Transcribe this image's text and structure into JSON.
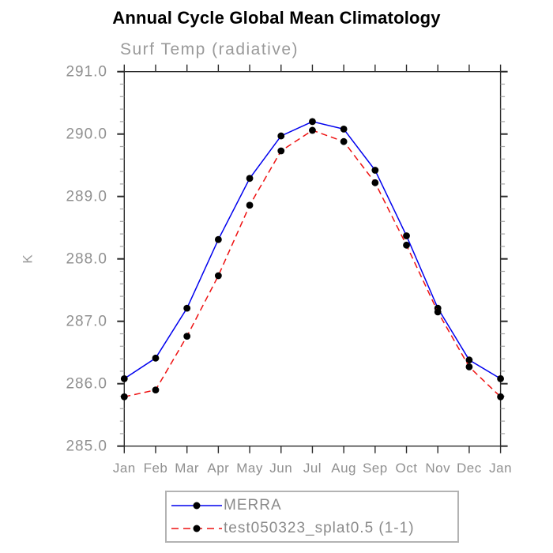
{
  "chart_data": {
    "type": "line",
    "title": "Annual Cycle Global Mean Climatology",
    "subtitle": "Surf Temp (radiative)",
    "ylabel": "K",
    "categories": [
      "Jan",
      "Feb",
      "Mar",
      "Apr",
      "May",
      "Jun",
      "Jul",
      "Aug",
      "Sep",
      "Oct",
      "Nov",
      "Dec",
      "Jan"
    ],
    "ylim": [
      285.0,
      291.0
    ],
    "ytick_major": 1.0,
    "ytick_minor": 0.2,
    "ytick_labels": [
      "285.0",
      "286.0",
      "287.0",
      "288.0",
      "289.0",
      "290.0",
      "291.0"
    ],
    "grid": false,
    "legend_position": "bottom",
    "marker": "filled-circle",
    "marker_color": "#000000",
    "series": [
      {
        "name": "MERRA",
        "color": "#0000ee",
        "style": "solid",
        "values": [
          286.08,
          286.41,
          287.21,
          288.31,
          289.29,
          289.97,
          290.2,
          290.08,
          289.42,
          288.37,
          287.21,
          286.38,
          286.08
        ]
      },
      {
        "name": "test050323_splat0.5 (1-1)",
        "color": "#ee1111",
        "style": "dashed",
        "values": [
          285.79,
          285.9,
          286.76,
          287.73,
          288.86,
          289.73,
          290.06,
          289.88,
          289.22,
          288.22,
          287.15,
          286.27,
          285.79
        ]
      }
    ]
  }
}
